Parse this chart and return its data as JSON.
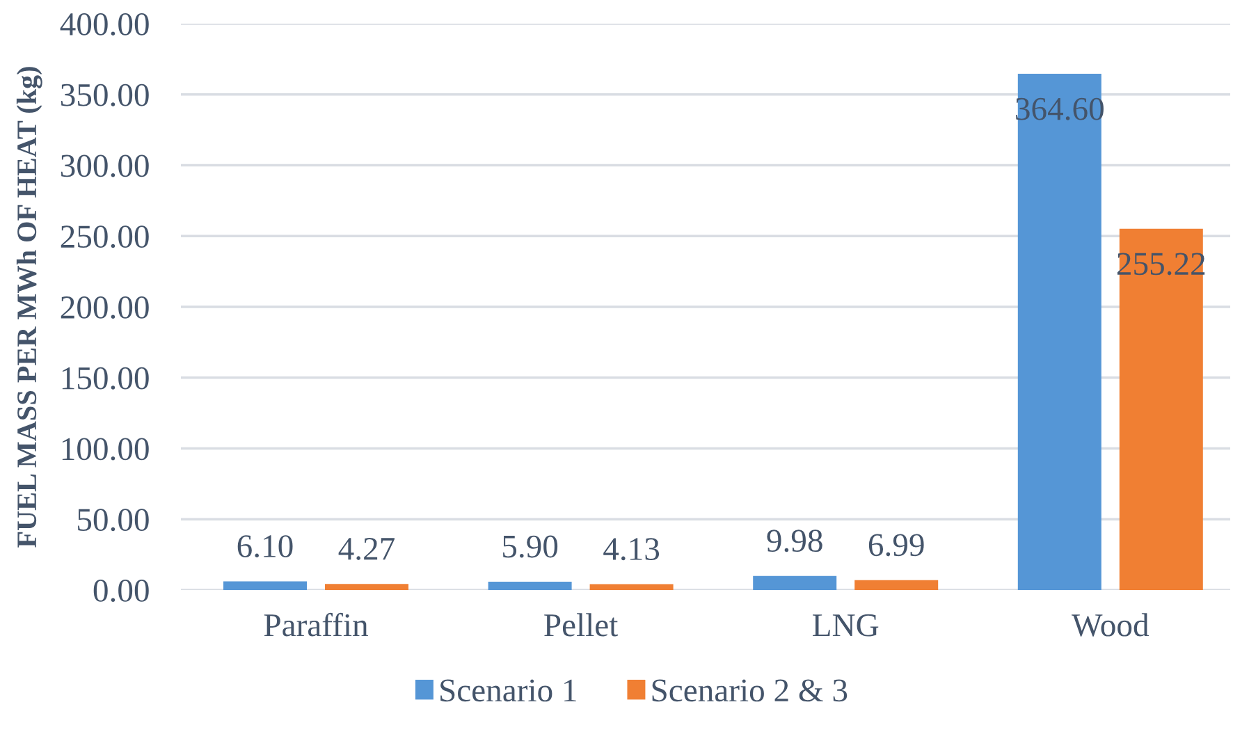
{
  "chart_data": {
    "type": "bar",
    "ylabel": "FUEL MASS PER MWh OF HEAT (kg)",
    "categories": [
      "Paraffin",
      "Pellet",
      "LNG",
      "Wood"
    ],
    "series": [
      {
        "name": "Scenario 1",
        "color": "#5596d6",
        "values": [
          6.1,
          5.9,
          9.98,
          364.6
        ],
        "value_labels": [
          "6.10",
          "5.90",
          "9.98",
          "364.60"
        ]
      },
      {
        "name": "Scenario 2 & 3",
        "color": "#f07f33",
        "values": [
          4.27,
          4.13,
          6.99,
          255.22
        ],
        "value_labels": [
          "4.27",
          "4.13",
          "6.99",
          "255.22"
        ]
      }
    ],
    "ylim": [
      0,
      400
    ],
    "yticks": [
      {
        "value": 0,
        "label": "0.00"
      },
      {
        "value": 50,
        "label": "50.00"
      },
      {
        "value": 100,
        "label": "100.00"
      },
      {
        "value": 150,
        "label": "150.00"
      },
      {
        "value": 200,
        "label": "200.00"
      },
      {
        "value": 250,
        "label": "250.00"
      },
      {
        "value": 300,
        "label": "300.00"
      },
      {
        "value": 350,
        "label": "350.00"
      },
      {
        "value": 400,
        "label": "400.00"
      }
    ],
    "grid": "y",
    "legend": "bottom"
  }
}
